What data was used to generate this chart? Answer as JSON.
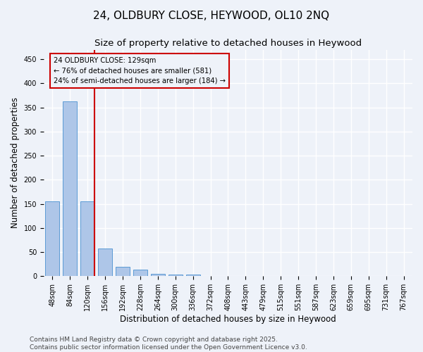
{
  "title_line1": "24, OLDBURY CLOSE, HEYWOOD, OL10 2NQ",
  "title_line2": "Size of property relative to detached houses in Heywood",
  "xlabel": "Distribution of detached houses by size in Heywood",
  "ylabel": "Number of detached properties",
  "bar_labels": [
    "48sqm",
    "84sqm",
    "120sqm",
    "156sqm",
    "192sqm",
    "228sqm",
    "264sqm",
    "300sqm",
    "336sqm",
    "372sqm",
    "408sqm",
    "443sqm",
    "479sqm",
    "515sqm",
    "551sqm",
    "587sqm",
    "623sqm",
    "659sqm",
    "695sqm",
    "731sqm",
    "767sqm"
  ],
  "bar_values": [
    155,
    362,
    155,
    57,
    19,
    14,
    5,
    4,
    4,
    0,
    0,
    0,
    0,
    0,
    0,
    0,
    1,
    0,
    0,
    0,
    0
  ],
  "bar_color": "#aec6e8",
  "bar_edge_color": "#5b9bd5",
  "vline_color": "#cc0000",
  "vline_x_index": 2,
  "annotation_line1": "24 OLDBURY CLOSE: 129sqm",
  "annotation_line2": "← 76% of detached houses are smaller (581)",
  "annotation_line3": "24% of semi-detached houses are larger (184) →",
  "annotation_box_color": "#cc0000",
  "ylim": [
    0,
    470
  ],
  "yticks": [
    0,
    50,
    100,
    150,
    200,
    250,
    300,
    350,
    400,
    450
  ],
  "background_color": "#eef2f9",
  "grid_color": "#ffffff",
  "footer_text": "Contains HM Land Registry data © Crown copyright and database right 2025.\nContains public sector information licensed under the Open Government Licence v3.0.",
  "title_fontsize": 11,
  "subtitle_fontsize": 9.5,
  "axis_label_fontsize": 8.5,
  "tick_fontsize": 7,
  "footer_fontsize": 6.5
}
